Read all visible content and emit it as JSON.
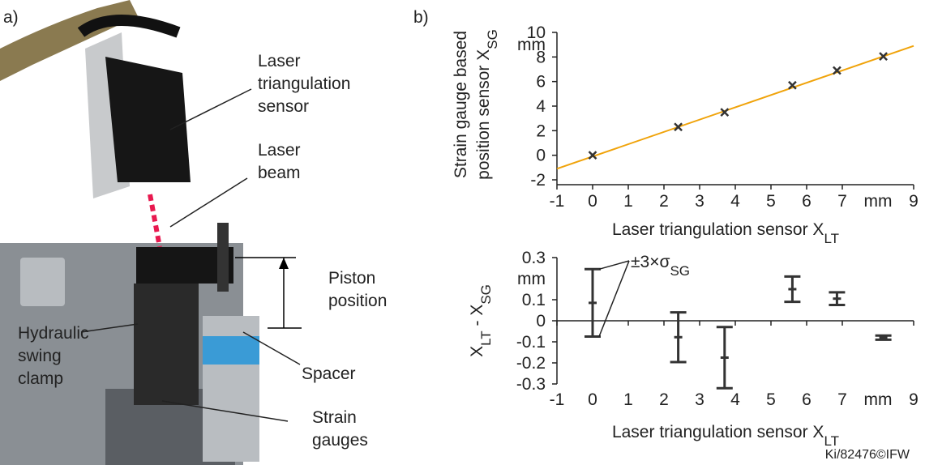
{
  "panel_a": {
    "label": "a)",
    "photo_labels": [
      [
        "Laser",
        "triangulation",
        "sensor"
      ],
      [
        "Laser",
        "beam"
      ],
      [
        "Piston",
        "position"
      ],
      [
        "Hydraulic",
        "swing",
        "clamp"
      ],
      [
        "Spacer"
      ],
      [
        "Strain",
        "gauges"
      ]
    ]
  },
  "credit": "Ki/82476©IFW",
  "chart_data": [
    {
      "type": "scatter",
      "panel_label": "b)",
      "ylabel": [
        [
          "Strain gauge based"
        ],
        [
          "position sensor X",
          "SG"
        ]
      ],
      "xlabel": [
        "Laser triangulation sensor X",
        "LT"
      ],
      "x": [
        0,
        2.4,
        3.7,
        5.6,
        6.85,
        8.15
      ],
      "values": [
        0,
        2.3,
        3.5,
        5.7,
        6.9,
        8.05
      ],
      "color": "#333333",
      "fit_line": {
        "x": [
          -1,
          9
        ],
        "values": [
          -1.1,
          8.9
        ],
        "color": "#f0a30a"
      },
      "xlim": [
        -1,
        9
      ],
      "ylim": [
        -2,
        10
      ],
      "xticks": [
        -1,
        0,
        1,
        2,
        3,
        4,
        5,
        6,
        7,
        {
          "value": 8,
          "label": "mm"
        },
        9
      ],
      "yticks": [
        -2,
        0,
        2,
        4,
        6,
        8,
        {
          "value": 9,
          "label": "mm"
        },
        10
      ]
    },
    {
      "type": "errorbar",
      "ylabel": [
        [
          "X",
          "LT",
          " - X",
          "SG"
        ]
      ],
      "xlabel": [
        "Laser triangulation sensor X",
        "LT"
      ],
      "annotation": [
        "±3×σ",
        "SG"
      ],
      "x": [
        0,
        2.4,
        3.7,
        5.6,
        6.85,
        8.15
      ],
      "values": [
        0.085,
        -0.078,
        -0.175,
        0.15,
        0.105,
        -0.08
      ],
      "errors": [
        0.16,
        0.118,
        0.145,
        0.06,
        0.03,
        0.01
      ],
      "color": "#333333",
      "xlim": [
        -1,
        9
      ],
      "ylim": [
        -0.3,
        0.3
      ],
      "xticks": [
        -1,
        0,
        1,
        2,
        3,
        4,
        5,
        6,
        7,
        {
          "value": 8,
          "label": "mm"
        },
        9
      ],
      "yticks": [
        -0.3,
        -0.2,
        -0.1,
        0,
        0.1,
        {
          "value": 0.2,
          "label": "mm"
        },
        0.3
      ]
    }
  ]
}
